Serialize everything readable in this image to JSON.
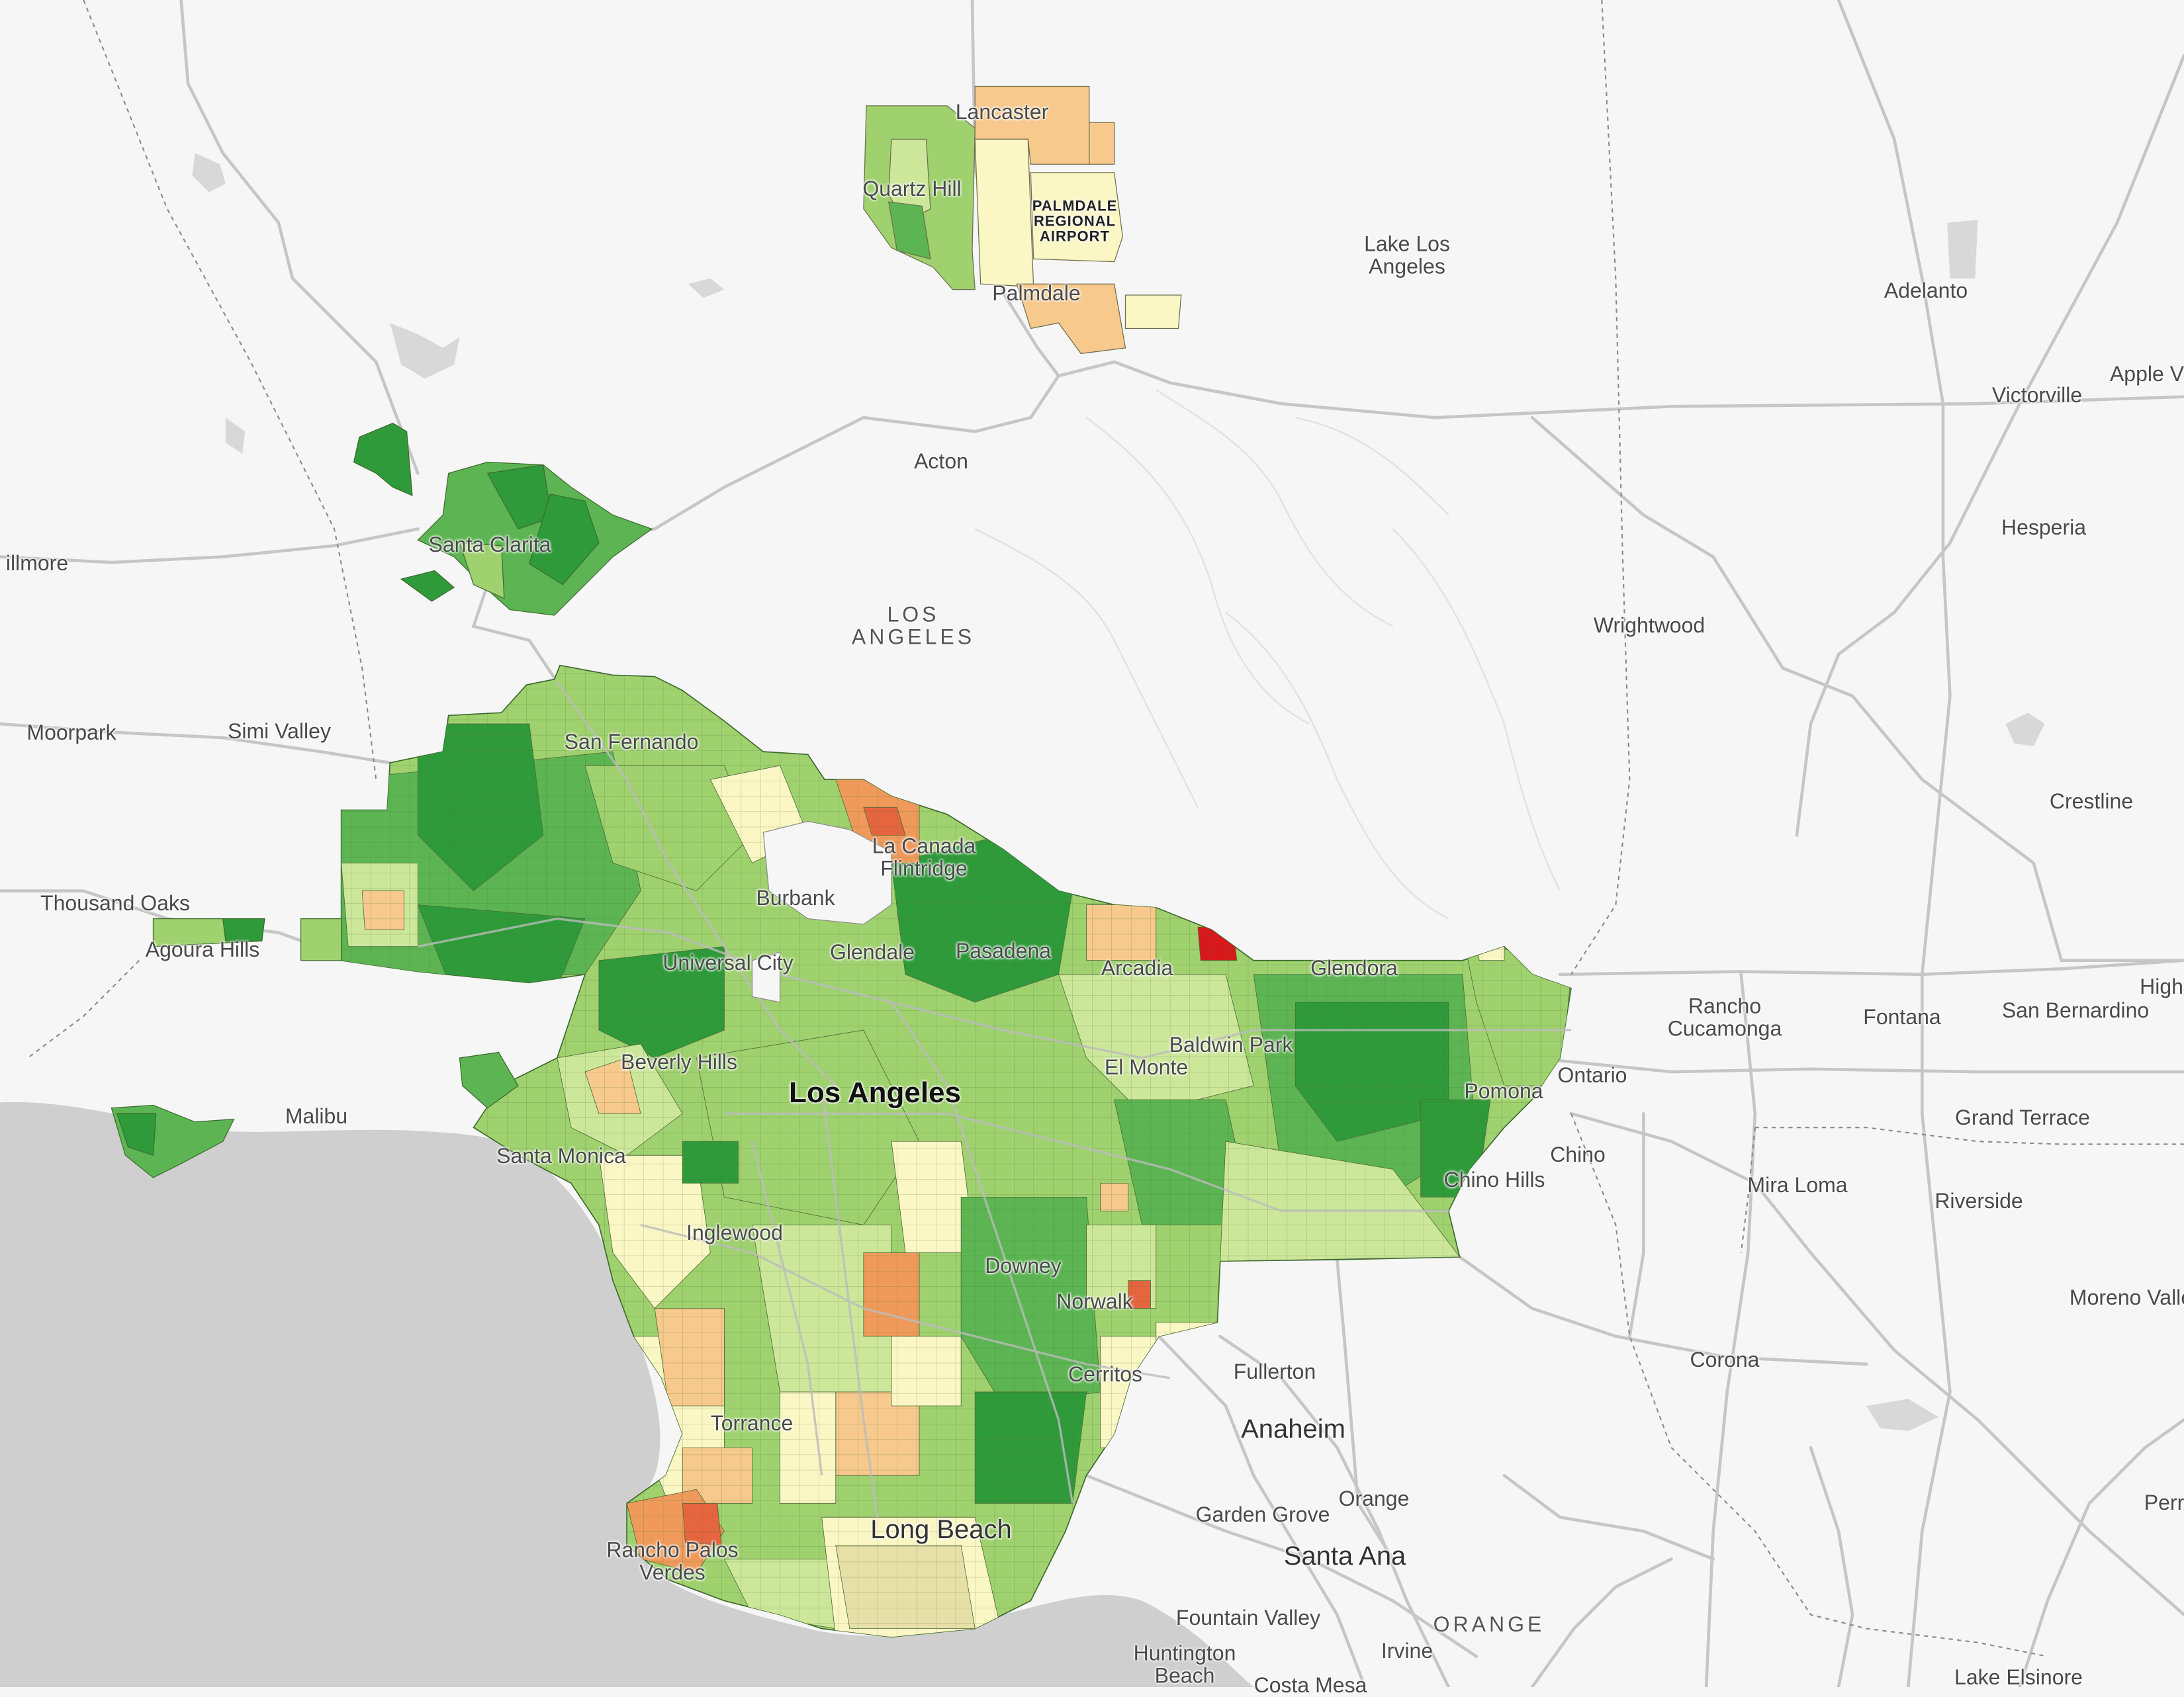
{
  "map": {
    "colors": {
      "background": "#f6f6f6",
      "ocean": "#cfcfcf",
      "road": "#c9c9c9",
      "boundary": "#8c8c8c",
      "dark_green": "#2f9a3a",
      "green": "#5cb552",
      "light_green": "#9fd16e",
      "pale_green": "#cce79a",
      "pale_yellow": "#fbf7c4",
      "light_orange": "#f7c98c",
      "orange": "#ef9a5a",
      "red_orange": "#e5653f",
      "red": "#d7191c"
    },
    "labels": {
      "lancaster": "Lancaster",
      "quartz_hill": "Quartz Hill",
      "palmdale_airport": "PALMDALE\nREGIONAL\nAIRPORT",
      "palmdale": "Palmdale",
      "lake_los_angeles": "Lake Los\nAngeles",
      "adelanto": "Adelanto",
      "victorville": "Victorville",
      "apple_valley": "Apple V",
      "acton": "Acton",
      "hesperia": "Hesperia",
      "fillmore": "illmore",
      "santa_clarita": "Santa Clarita",
      "county_los_angeles": "LOS\nANGELES",
      "wrightwood": "Wrightwood",
      "moorpark": "Moorpark",
      "simi_valley": "Simi Valley",
      "san_fernando": "San Fernando",
      "crestline": "Crestline",
      "la_canada": "La Canada\nFlintridge",
      "thousand_oaks": "Thousand Oaks",
      "burbank": "Burbank",
      "agoura_hills": "Agoura Hills",
      "universal_city": "Universal City",
      "glendale": "Glendale",
      "pasadena": "Pasadena",
      "arcadia": "Arcadia",
      "glendora": "Glendora",
      "highland": "High",
      "rancho_cucamonga": "Rancho\nCucamonga",
      "fontana": "Fontana",
      "san_bernardino": "San Bernardino",
      "baldwin_park": "Baldwin Park",
      "beverly_hills": "Beverly Hills",
      "el_monte": "El Monte",
      "ontario": "Ontario",
      "los_angeles": "Los Angeles",
      "pomona": "Pomona",
      "malibu": "Malibu",
      "grand_terrace": "Grand Terrace",
      "santa_monica": "Santa Monica",
      "chino": "Chino",
      "chino_hills": "Chino Hills",
      "mira_loma": "Mira Loma",
      "riverside": "Riverside",
      "inglewood": "Inglewood",
      "downey": "Downey",
      "norwalk": "Norwalk",
      "moreno_valley": "Moreno Valle",
      "corona": "Corona",
      "cerritos": "Cerritos",
      "fullerton": "Fullerton",
      "torrance": "Torrance",
      "anaheim": "Anaheim",
      "orange": "Orange",
      "garden_grove": "Garden Grove",
      "perris": "Perr",
      "rancho_palos_verdes": "Rancho Palos\nVerdes",
      "long_beach": "Long Beach",
      "santa_ana": "Santa Ana",
      "fountain_valley": "Fountain Valley",
      "county_orange": "ORANGE",
      "huntington_beach": "Huntington\nBeach",
      "irvine": "Irvine",
      "costa_mesa": "Costa Mesa",
      "lake_elsinore": "Lake Elsinore"
    }
  }
}
